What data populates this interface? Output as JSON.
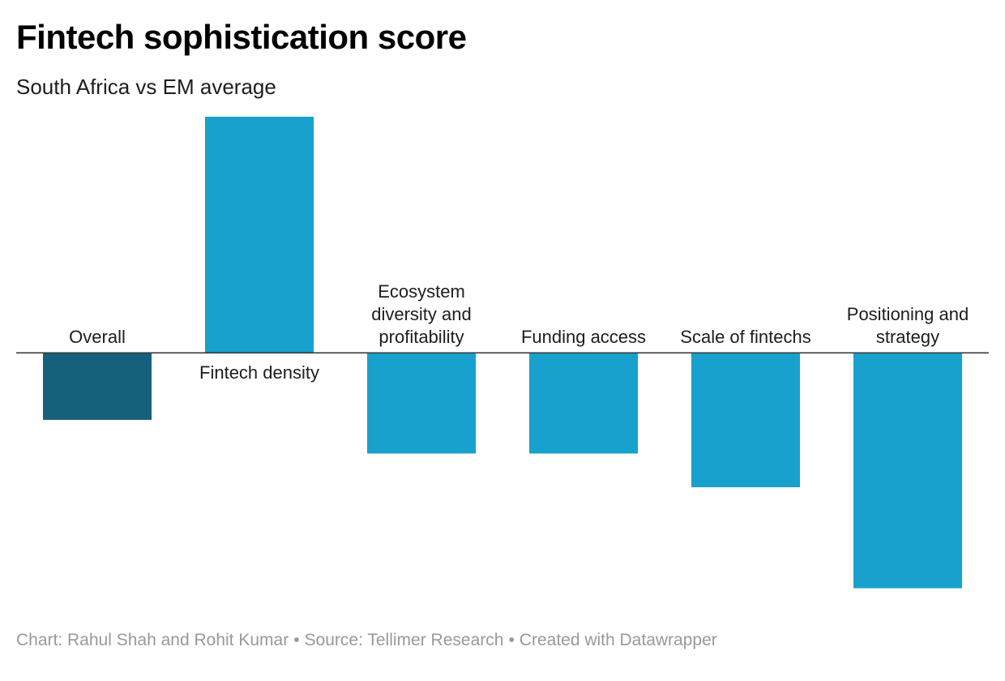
{
  "header": {
    "title": "Fintech sophistication score",
    "subtitle": "South Africa vs EM average"
  },
  "footer": {
    "chart_credit": "Chart: Rahul Shah and Rohit Kumar",
    "separator": "•",
    "source": "Source: Tellimer Research",
    "created_with": "Created with Datawrapper"
  },
  "chart_data": {
    "type": "bar",
    "title": "Fintech sophistication score",
    "subtitle": "South Africa vs EM average",
    "categories": [
      "Overall",
      "Fintech density",
      "Ecosystem diversity and profitability",
      "Funding access",
      "Scale of fintechs",
      "Positioning and strategy"
    ],
    "label_lines": [
      [
        "Overall"
      ],
      [
        "Fintech density"
      ],
      [
        "Ecosystem",
        "diversity and",
        "profitability"
      ],
      [
        "Funding access"
      ],
      [
        "Scale of fintechs"
      ],
      [
        "Positioning and",
        "strategy"
      ]
    ],
    "values": [
      -0.2,
      0.7,
      -0.3,
      -0.3,
      -0.4,
      -0.7
    ],
    "colors": [
      "#15607a",
      "#18a1cd",
      "#18a1cd",
      "#18a1cd",
      "#18a1cd",
      "#18a1cd"
    ],
    "baseline": 0,
    "ylim": [
      -0.73,
      0.7
    ],
    "xlabel": "",
    "ylabel": "",
    "grid": false,
    "legend": "none"
  }
}
